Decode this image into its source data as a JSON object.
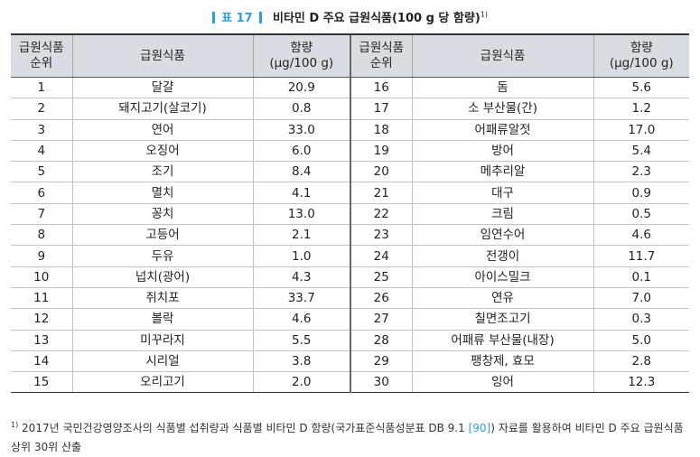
{
  "title": {
    "tag": "표 17",
    "caption": "비타민 D 주요 급원식품(100 g 당 함량)",
    "note_mark": "1)"
  },
  "table": {
    "headers": {
      "rank": [
        "급원식품",
        "순위"
      ],
      "food": "급원식품",
      "amount": [
        "함량",
        "(μg/100 g)"
      ]
    },
    "rows_left": [
      {
        "rank": "1",
        "food": "달걀",
        "amount": "20.9"
      },
      {
        "rank": "2",
        "food": "돼지고기(살코기)",
        "amount": "0.8"
      },
      {
        "rank": "3",
        "food": "연어",
        "amount": "33.0"
      },
      {
        "rank": "4",
        "food": "오징어",
        "amount": "6.0"
      },
      {
        "rank": "5",
        "food": "조기",
        "amount": "8.4"
      },
      {
        "rank": "6",
        "food": "멸치",
        "amount": "4.1"
      },
      {
        "rank": "7",
        "food": "꽁치",
        "amount": "13.0"
      },
      {
        "rank": "8",
        "food": "고등어",
        "amount": "2.1"
      },
      {
        "rank": "9",
        "food": "두유",
        "amount": "1.0"
      },
      {
        "rank": "10",
        "food": "넙치(광어)",
        "amount": "4.3"
      },
      {
        "rank": "11",
        "food": "쥐치포",
        "amount": "33.7"
      },
      {
        "rank": "12",
        "food": "볼락",
        "amount": "4.6"
      },
      {
        "rank": "13",
        "food": "미꾸라지",
        "amount": "5.5"
      },
      {
        "rank": "14",
        "food": "시리얼",
        "amount": "3.8"
      },
      {
        "rank": "15",
        "food": "오리고기",
        "amount": "2.0"
      }
    ],
    "rows_right": [
      {
        "rank": "16",
        "food": "돔",
        "amount": "5.6"
      },
      {
        "rank": "17",
        "food": "소 부산물(간)",
        "amount": "1.2"
      },
      {
        "rank": "18",
        "food": "어패류알젓",
        "amount": "17.0"
      },
      {
        "rank": "19",
        "food": "방어",
        "amount": "5.4"
      },
      {
        "rank": "20",
        "food": "메추리알",
        "amount": "2.3"
      },
      {
        "rank": "21",
        "food": "대구",
        "amount": "0.9"
      },
      {
        "rank": "22",
        "food": "크림",
        "amount": "0.5"
      },
      {
        "rank": "23",
        "food": "임연수어",
        "amount": "4.6"
      },
      {
        "rank": "24",
        "food": "전갱이",
        "amount": "11.7"
      },
      {
        "rank": "25",
        "food": "아이스밀크",
        "amount": "0.1"
      },
      {
        "rank": "26",
        "food": "연유",
        "amount": "7.0"
      },
      {
        "rank": "27",
        "food": "칠면조고기",
        "amount": "0.3"
      },
      {
        "rank": "28",
        "food": "어패류 부산물(내장)",
        "amount": "5.0"
      },
      {
        "rank": "29",
        "food": "팽창제, 효모",
        "amount": "2.8"
      },
      {
        "rank": "30",
        "food": "잉어",
        "amount": "12.3"
      }
    ]
  },
  "footnote": {
    "mark": "1)",
    "text_before": "2017년 국민건강영양조사의 식품별 섭취량과 식품별 비타민 D 함량(국가표준식품성분표 DB 9.1 ",
    "ref": "[90]",
    "text_after": ") 자료를 활용하여 비타민 D 주요 급원식품 상위 30위 산출"
  },
  "colors": {
    "accent": "#2aa0d8",
    "header_bg": "#d8dde3"
  }
}
